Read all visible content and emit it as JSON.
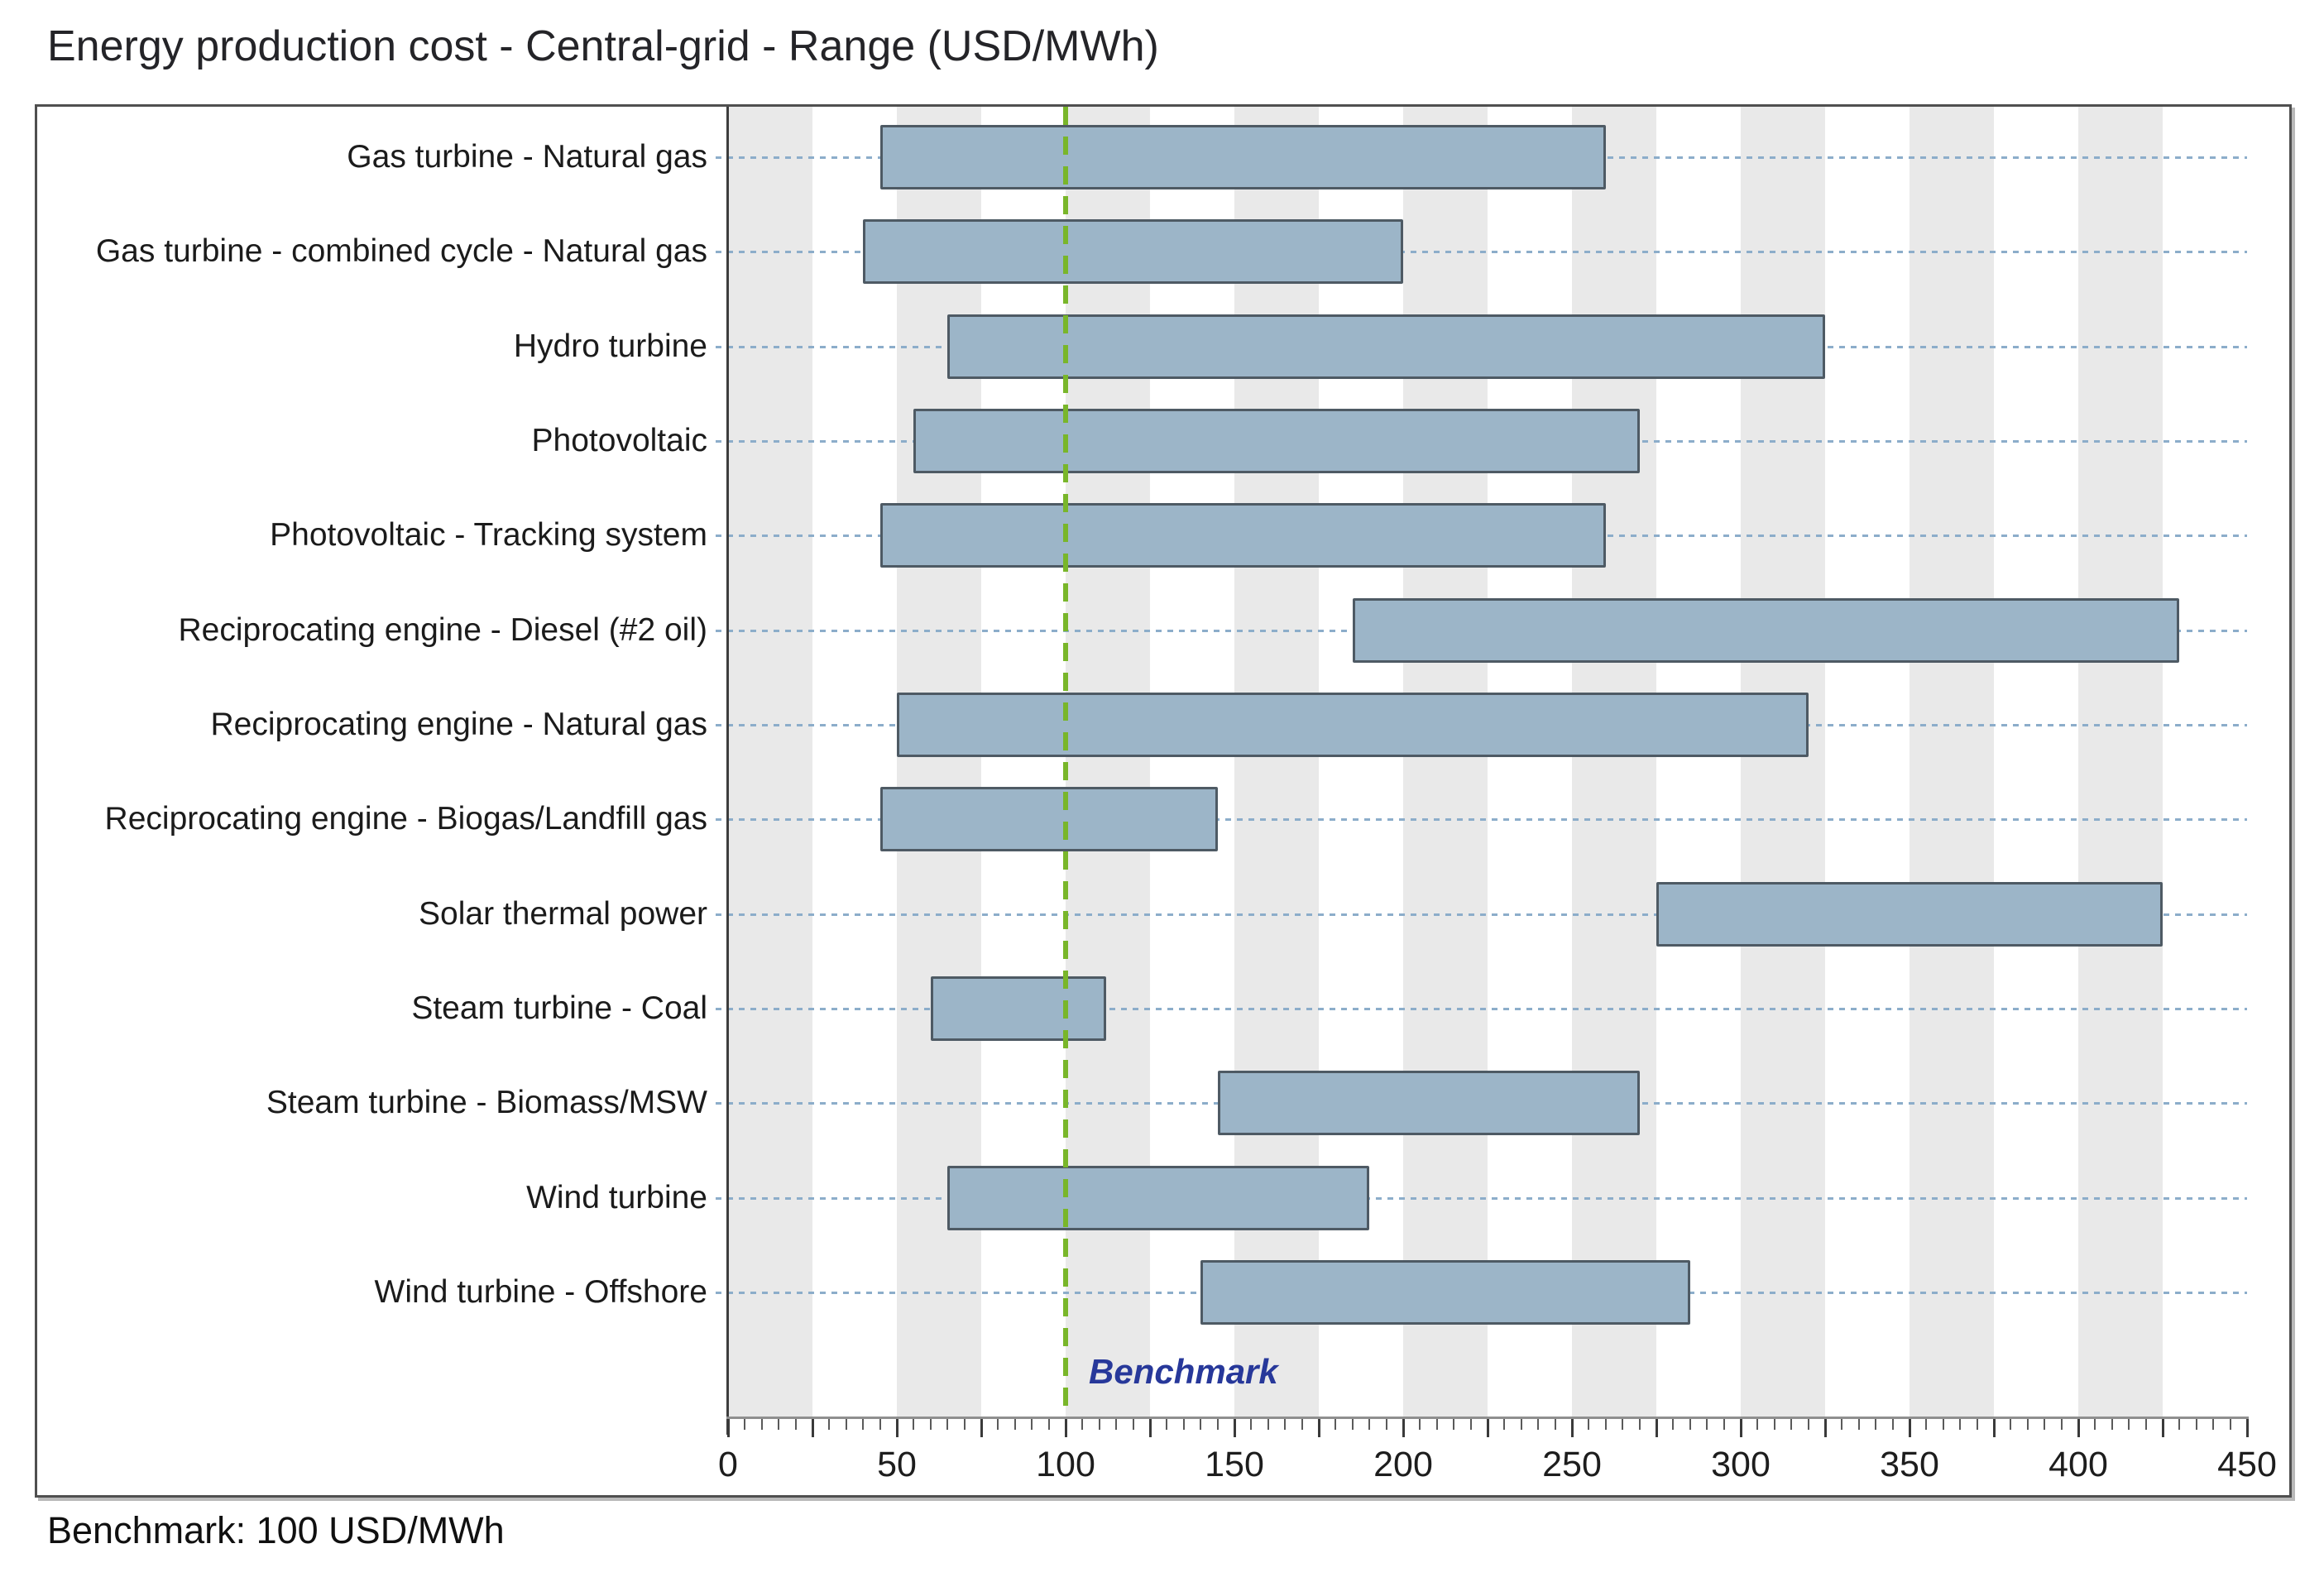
{
  "page": {
    "title": "Energy production cost - Central-grid - Range (USD/MWh)",
    "footer_note": "Benchmark: 100 USD/MWh"
  },
  "chart_data": {
    "type": "bar",
    "subtype": "horizontal-range-bars",
    "title": "Energy production cost - Central-grid - Range (USD/MWh)",
    "unit": "USD/MWh",
    "categories": [
      "Gas turbine - Natural gas",
      "Gas turbine - combined cycle - Natural gas",
      "Hydro turbine",
      "Photovoltaic",
      "Photovoltaic - Tracking system",
      "Reciprocating engine - Diesel (#2 oil)",
      "Reciprocating engine - Natural gas",
      "Reciprocating engine - Biogas/Landfill gas",
      "Solar thermal power",
      "Steam turbine - Coal",
      "Steam turbine - Biomass/MSW",
      "Wind turbine",
      "Wind turbine - Offshore"
    ],
    "bars": [
      {
        "category": "Gas turbine - Natural gas",
        "min": 45,
        "max": 260
      },
      {
        "category": "Gas turbine - combined cycle - Natural gas",
        "min": 40,
        "max": 200
      },
      {
        "category": "Hydro turbine",
        "min": 65,
        "max": 325
      },
      {
        "category": "Photovoltaic",
        "min": 55,
        "max": 270
      },
      {
        "category": "Photovoltaic - Tracking system",
        "min": 45,
        "max": 260
      },
      {
        "category": "Reciprocating engine - Diesel (#2 oil)",
        "min": 185,
        "max": 430
      },
      {
        "category": "Reciprocating engine - Natural gas",
        "min": 50,
        "max": 320
      },
      {
        "category": "Reciprocating engine - Biogas/Landfill gas",
        "min": 45,
        "max": 145
      },
      {
        "category": "Solar thermal power",
        "min": 275,
        "max": 425
      },
      {
        "category": "Steam turbine - Coal",
        "min": 60,
        "max": 112
      },
      {
        "category": "Steam turbine - Biomass/MSW",
        "min": 145,
        "max": 270
      },
      {
        "category": "Wind turbine",
        "min": 65,
        "max": 190
      },
      {
        "category": "Wind turbine - Offshore",
        "min": 140,
        "max": 285
      }
    ],
    "xlim": [
      0,
      450
    ],
    "xticks": [
      0,
      50,
      100,
      150,
      200,
      250,
      300,
      350,
      400,
      450
    ],
    "major_tick_step": 25,
    "minor_tick_step": 5,
    "background_bands": "gray vertical bands from k*50 to k*50+25 for k=0..8",
    "grid": "dotted horizontal line per category row",
    "legend": "none",
    "benchmark": {
      "value": 100,
      "label": "Benchmark",
      "note": "Benchmark: 100 USD/MWh"
    }
  },
  "colors": {
    "bar_fill": "#9cb5c8",
    "bar_border": "#4e5a64",
    "band_gray": "#e9e9e9",
    "gridline_dotted": "#8cadca",
    "benchmark_line": "#79b62a",
    "benchmark_label": "#27389a",
    "axis_line": "#8f8f8f",
    "tick_major": "#3a3a3a",
    "tick_minor": "#5a5a5a",
    "text": "#1d1d1d",
    "frame_border": "#4f4f4f"
  }
}
